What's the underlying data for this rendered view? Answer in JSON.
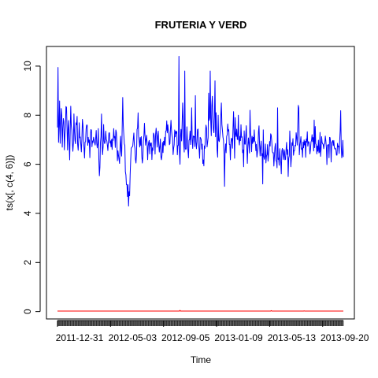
{
  "chart_data": {
    "type": "line",
    "title": "FRUTERIA Y VERD",
    "xlabel": "Time",
    "ylabel": "ts(x[, c(4, 6)])",
    "ylim": [
      -0.3,
      10.8
    ],
    "yticks": [
      0,
      2,
      4,
      6,
      8,
      10
    ],
    "xticks": [
      {
        "label": "2011-12-31",
        "x": 1
      },
      {
        "label": "2012-05-03",
        "x": 101
      },
      {
        "label": "2012-09-05",
        "x": 201
      },
      {
        "label": "2013-01-09",
        "x": 301
      },
      {
        "label": "2013-05-13",
        "x": 401
      },
      {
        "label": "2013-09-20",
        "x": 501
      }
    ],
    "n_points": 540,
    "grid": false,
    "series": [
      {
        "color": "#0000ff",
        "anchors": [
          [
            1,
            7.3
          ],
          [
            2,
            10.0
          ],
          [
            3,
            7.0
          ],
          [
            5,
            8.3
          ],
          [
            6,
            7.0
          ],
          [
            8,
            8.4
          ],
          [
            10,
            6.9
          ],
          [
            12,
            8.0
          ],
          [
            14,
            6.8
          ],
          [
            16,
            7.6
          ],
          [
            18,
            8.5
          ],
          [
            20,
            6.6
          ],
          [
            22,
            7.9
          ],
          [
            24,
            6.1
          ],
          [
            26,
            8.4
          ],
          [
            28,
            7.2
          ],
          [
            30,
            6.5
          ],
          [
            32,
            7.8
          ],
          [
            34,
            6.9
          ],
          [
            36,
            7.4
          ],
          [
            38,
            7.9
          ],
          [
            40,
            6.3
          ],
          [
            42,
            7.7
          ],
          [
            44,
            6.9
          ],
          [
            46,
            6.6
          ],
          [
            48,
            7.7
          ],
          [
            50,
            7.2
          ],
          [
            52,
            6.2
          ],
          [
            54,
            7.2
          ],
          [
            56,
            7.6
          ],
          [
            58,
            7.1
          ],
          [
            60,
            6.9
          ],
          [
            62,
            6.6
          ],
          [
            64,
            7.4
          ],
          [
            66,
            7.0
          ],
          [
            68,
            6.8
          ],
          [
            70,
            7.2
          ],
          [
            72,
            6.6
          ],
          [
            74,
            7.5
          ],
          [
            76,
            6.4
          ],
          [
            78,
            7.5
          ],
          [
            80,
            5.2
          ],
          [
            82,
            6.9
          ],
          [
            84,
            7.7
          ],
          [
            86,
            6.4
          ],
          [
            88,
            7.3
          ],
          [
            90,
            6.9
          ],
          [
            92,
            7.1
          ],
          [
            94,
            7.1
          ],
          [
            96,
            6.4
          ],
          [
            98,
            7.5
          ],
          [
            100,
            6.8
          ],
          [
            102,
            7.0
          ],
          [
            104,
            6.6
          ],
          [
            106,
            7.3
          ],
          [
            108,
            7.1
          ],
          [
            110,
            7.0
          ],
          [
            112,
            7.3
          ],
          [
            114,
            6.4
          ],
          [
            116,
            6.3
          ],
          [
            118,
            6.2
          ],
          [
            120,
            7.0
          ],
          [
            122,
            6.4
          ],
          [
            124,
            8.5
          ],
          [
            126,
            7.2
          ],
          [
            128,
            6.5
          ],
          [
            130,
            5.5
          ],
          [
            132,
            4.9
          ],
          [
            134,
            5.1
          ],
          [
            135,
            4.3
          ],
          [
            137,
            5.0
          ],
          [
            139,
            6.1
          ],
          [
            141,
            6.9
          ],
          [
            143,
            6.6
          ],
          [
            145,
            7.4
          ],
          [
            147,
            6.4
          ],
          [
            149,
            6.1
          ],
          [
            151,
            7.1
          ],
          [
            153,
            8.1
          ],
          [
            155,
            6.6
          ],
          [
            157,
            7.1
          ],
          [
            159,
            6.8
          ],
          [
            161,
            6.1
          ],
          [
            163,
            6.7
          ],
          [
            165,
            7.8
          ],
          [
            167,
            6.6
          ],
          [
            169,
            7.4
          ],
          [
            171,
            6.1
          ],
          [
            173,
            7.2
          ],
          [
            175,
            6.4
          ],
          [
            177,
            7.1
          ],
          [
            179,
            6.2
          ],
          [
            181,
            6.9
          ],
          [
            183,
            7.2
          ],
          [
            185,
            6.7
          ],
          [
            187,
            7.4
          ],
          [
            189,
            6.9
          ],
          [
            191,
            7.2
          ],
          [
            193,
            6.6
          ],
          [
            195,
            6.8
          ],
          [
            197,
            6.2
          ],
          [
            199,
            6.6
          ],
          [
            201,
            6.9
          ],
          [
            203,
            6.8
          ],
          [
            205,
            7.3
          ],
          [
            207,
            7.5
          ],
          [
            209,
            7.6
          ],
          [
            211,
            7.1
          ],
          [
            213,
            6.9
          ],
          [
            215,
            7.7
          ],
          [
            217,
            7.3
          ],
          [
            219,
            6.4
          ],
          [
            221,
            7.0
          ],
          [
            223,
            7.2
          ],
          [
            225,
            7.5
          ],
          [
            227,
            6.5
          ],
          [
            229,
            7.0
          ],
          [
            231,
            6.6
          ],
          [
            233,
            7.3
          ],
          [
            235,
            7.0
          ],
          [
            237,
            8.5
          ],
          [
            239,
            6.8
          ],
          [
            241,
            6.6
          ],
          [
            243,
            6.5
          ],
          [
            245,
            7.4
          ],
          [
            247,
            6.4
          ],
          [
            249,
            6.8
          ],
          [
            251,
            7.2
          ],
          [
            253,
            7.1
          ],
          [
            255,
            6.9
          ],
          [
            257,
            7.0
          ],
          [
            259,
            7.1
          ],
          [
            261,
            6.8
          ],
          [
            263,
            6.7
          ],
          [
            265,
            7.4
          ],
          [
            267,
            7.0
          ],
          [
            269,
            6.3
          ],
          [
            271,
            7.3
          ],
          [
            273,
            6.7
          ],
          [
            275,
            6.3
          ],
          [
            277,
            6.0
          ],
          [
            279,
            6.9
          ],
          [
            281,
            7.6
          ],
          [
            283,
            6.9
          ],
          [
            285,
            7.0
          ],
          [
            287,
            7.9
          ],
          [
            289,
            8.2
          ],
          [
            291,
            7.2
          ],
          [
            293,
            8.5
          ],
          [
            295,
            7.4
          ],
          [
            297,
            7.7
          ],
          [
            299,
            7.1
          ],
          [
            301,
            7.0
          ],
          [
            303,
            6.3
          ],
          [
            305,
            6.7
          ],
          [
            307,
            7.2
          ],
          [
            309,
            7.8
          ],
          [
            311,
            7.8
          ],
          [
            313,
            7.0
          ],
          [
            315,
            6.7
          ],
          [
            317,
            6.5
          ],
          [
            319,
            6.8
          ],
          [
            321,
            7.2
          ],
          [
            323,
            7.7
          ],
          [
            325,
            6.8
          ],
          [
            327,
            6.5
          ],
          [
            329,
            7.0
          ],
          [
            331,
            6.9
          ],
          [
            333,
            8.0
          ],
          [
            335,
            6.4
          ],
          [
            337,
            7.0
          ],
          [
            339,
            7.5
          ],
          [
            341,
            6.7
          ],
          [
            343,
            7.0
          ],
          [
            345,
            6.8
          ],
          [
            347,
            7.6
          ],
          [
            349,
            6.8
          ],
          [
            351,
            6.6
          ],
          [
            353,
            7.1
          ],
          [
            355,
            6.9
          ],
          [
            357,
            7.4
          ],
          [
            359,
            6.2
          ],
          [
            361,
            7.0
          ],
          [
            363,
            6.7
          ],
          [
            365,
            7.3
          ],
          [
            367,
            6.8
          ],
          [
            369,
            6.9
          ],
          [
            371,
            7.2
          ],
          [
            373,
            7.0
          ],
          [
            375,
            6.8
          ],
          [
            377,
            6.3
          ],
          [
            379,
            6.8
          ],
          [
            381,
            7.5
          ],
          [
            383,
            6.4
          ],
          [
            385,
            6.8
          ],
          [
            387,
            6.4
          ],
          [
            389,
            7.2
          ],
          [
            391,
            6.1
          ],
          [
            393,
            6.6
          ],
          [
            395,
            6.2
          ],
          [
            397,
            6.6
          ],
          [
            399,
            6.3
          ],
          [
            401,
            6.8
          ],
          [
            403,
            7.2
          ],
          [
            405,
            6.9
          ],
          [
            407,
            6.5
          ],
          [
            409,
            6.0
          ],
          [
            411,
            6.8
          ],
          [
            413,
            6.3
          ],
          [
            415,
            6.0
          ],
          [
            417,
            6.4
          ],
          [
            419,
            6.1
          ],
          [
            421,
            6.5
          ],
          [
            423,
            5.7
          ],
          [
            425,
            6.8
          ],
          [
            427,
            6.2
          ],
          [
            429,
            6.6
          ],
          [
            431,
            6.1
          ],
          [
            433,
            6.9
          ],
          [
            435,
            6.4
          ],
          [
            437,
            6.2
          ],
          [
            439,
            7.1
          ],
          [
            441,
            6.5
          ],
          [
            443,
            6.6
          ],
          [
            445,
            7.0
          ],
          [
            447,
            6.3
          ],
          [
            449,
            6.8
          ],
          [
            451,
            7.1
          ],
          [
            453,
            6.9
          ],
          [
            455,
            8.3
          ],
          [
            457,
            6.6
          ],
          [
            459,
            6.9
          ],
          [
            461,
            6.9
          ],
          [
            463,
            6.3
          ],
          [
            465,
            7.0
          ],
          [
            467,
            6.8
          ],
          [
            469,
            6.6
          ],
          [
            471,
            7.3
          ],
          [
            473,
            7.0
          ],
          [
            475,
            6.8
          ],
          [
            477,
            6.6
          ],
          [
            479,
            6.7
          ],
          [
            481,
            7.3
          ],
          [
            483,
            6.8
          ],
          [
            485,
            6.5
          ],
          [
            487,
            7.2
          ],
          [
            489,
            6.8
          ],
          [
            491,
            6.4
          ],
          [
            493,
            7.0
          ],
          [
            495,
            6.2
          ],
          [
            497,
            6.4
          ],
          [
            499,
            6.9
          ],
          [
            501,
            7.0
          ],
          [
            503,
            6.5
          ],
          [
            505,
            7.1
          ],
          [
            507,
            6.9
          ],
          [
            509,
            6.3
          ],
          [
            511,
            6.8
          ],
          [
            513,
            6.6
          ],
          [
            515,
            7.1
          ],
          [
            517,
            6.4
          ],
          [
            519,
            6.9
          ],
          [
            521,
            7.0
          ],
          [
            523,
            6.6
          ],
          [
            525,
            6.8
          ],
          [
            527,
            6.2
          ],
          [
            529,
            6.9
          ],
          [
            531,
            6.5
          ],
          [
            533,
            6.9
          ],
          [
            535,
            7.9
          ],
          [
            537,
            6.2
          ],
          [
            539,
            6.7
          ],
          [
            540,
            6.6
          ]
        ],
        "spikes": [
          [
            230,
            10.4
          ],
          [
            232,
            6.0
          ],
          [
            237,
            8.5
          ],
          [
            241,
            9.8
          ],
          [
            254,
            8.3
          ],
          [
            261,
            8.8
          ],
          [
            286,
            8.9
          ],
          [
            289,
            9.8
          ],
          [
            292,
            8.4
          ],
          [
            298,
            9.4
          ],
          [
            300,
            8.1
          ],
          [
            304,
            8.0
          ],
          [
            310,
            8.5
          ],
          [
            316,
            5.1
          ],
          [
            336,
            7.9
          ],
          [
            342,
            8.0
          ],
          [
            352,
            5.9
          ],
          [
            364,
            8.2
          ],
          [
            388,
            5.2
          ],
          [
            416,
            8.3
          ],
          [
            436,
            5.5
          ],
          [
            441,
            5.9
          ],
          [
            456,
            8.3
          ],
          [
            471,
            6.9
          ],
          [
            485,
            7.8
          ],
          [
            496,
            7.3
          ]
        ]
      },
      {
        "color": "#ff0000",
        "level": 0.02,
        "bumps": [
          [
            232,
            0.05
          ],
          [
            404,
            0.04
          ],
          [
            466,
            0.03
          ]
        ]
      }
    ]
  }
}
